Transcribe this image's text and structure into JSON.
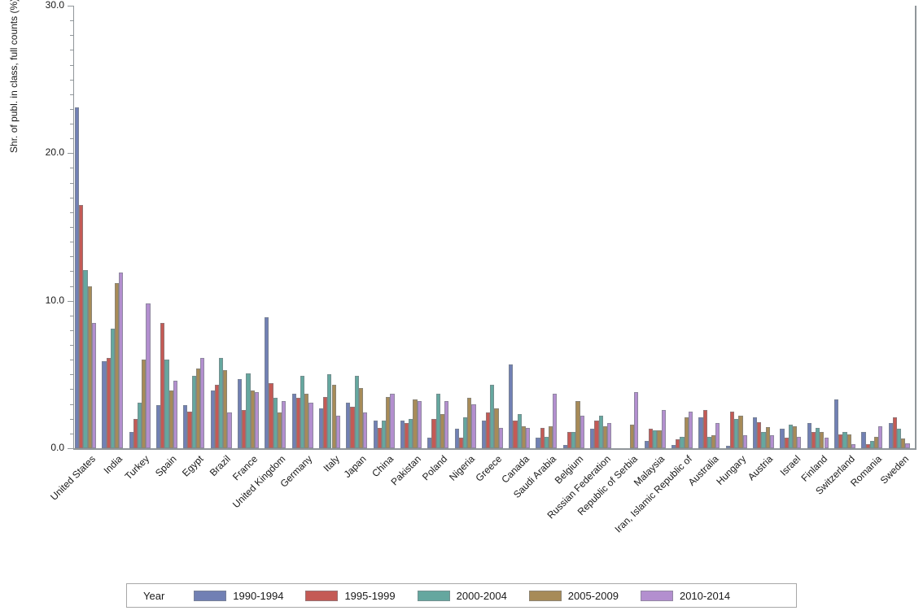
{
  "y_axis": {
    "label": "Shr. of publ. in class, full counts (%)",
    "tick_values": [
      0,
      10,
      20,
      30
    ],
    "tick_labels": [
      "0.0",
      "10.0",
      "20.0",
      "30.0"
    ],
    "minor_tick_step": 1,
    "max": 30
  },
  "legend": {
    "title": "Year",
    "position": "bottom"
  },
  "colors": {
    "axis": "#90969a",
    "series_1990_1994": "#7180b4",
    "series_1995_1999": "#c45a55",
    "series_2000_2004": "#65a79f",
    "series_2005_2009": "#a78b58",
    "series_2010_2014": "#b38fcf"
  },
  "chart_data": {
    "type": "bar",
    "title": "",
    "xlabel": "",
    "ylabel": "Shr. of publ. in class, full counts (%)",
    "ylim": [
      0,
      30
    ],
    "y_ticks": [
      0,
      10,
      20,
      30
    ],
    "grid": false,
    "legend_title": "Year",
    "legend_position": "bottom",
    "categories": [
      "United States",
      "India",
      "Turkey",
      "Spain",
      "Egypt",
      "Brazil",
      "France",
      "United Kingdom",
      "Germany",
      "Italy",
      "Japan",
      "China",
      "Pakistan",
      "Poland",
      "Nigeria",
      "Greece",
      "Canada",
      "Saudi Arabia",
      "Belgium",
      "Russian Federation",
      "Republic of Serbia",
      "Malaysia",
      "Iran, Islamic Republic of",
      "Australia",
      "Hungary",
      "Austria",
      "Israel",
      "Finland",
      "Switzerland",
      "Romania",
      "Sweden"
    ],
    "series": [
      {
        "name": "1990-1994",
        "color": "#7180b4",
        "values": [
          23.1,
          5.9,
          1.1,
          2.9,
          2.9,
          3.9,
          4.7,
          8.9,
          3.7,
          2.7,
          3.1,
          1.9,
          1.9,
          0.7,
          1.3,
          1.9,
          5.7,
          0.7,
          0.2,
          1.3,
          0,
          0.5,
          0.2,
          2.1,
          0.15,
          2.1,
          1.3,
          1.7,
          3.3,
          1.1,
          1.7
        ]
      },
      {
        "name": "1995-1999",
        "color": "#c45a55",
        "values": [
          16.5,
          6.1,
          2.0,
          8.5,
          2.5,
          4.3,
          2.6,
          4.4,
          3.4,
          3.5,
          2.8,
          1.4,
          1.7,
          2.0,
          0.7,
          2.4,
          1.9,
          1.4,
          1.1,
          1.9,
          0,
          1.3,
          0.6,
          2.6,
          2.5,
          1.75,
          0.7,
          1.1,
          0.95,
          0.3,
          2.1
        ]
      },
      {
        "name": "2000-2004",
        "color": "#65a79f",
        "values": [
          12.1,
          8.1,
          3.1,
          6.0,
          4.9,
          6.1,
          5.1,
          3.4,
          4.9,
          5.0,
          4.9,
          1.9,
          2.0,
          3.7,
          2.1,
          4.3,
          2.3,
          0.8,
          1.1,
          2.2,
          0,
          1.2,
          0.8,
          0.8,
          2.0,
          1.1,
          1.6,
          1.4,
          1.1,
          0.5,
          1.3
        ]
      },
      {
        "name": "2005-2009",
        "color": "#a78b58",
        "values": [
          11.0,
          11.2,
          6.0,
          3.9,
          5.4,
          5.3,
          3.9,
          2.4,
          3.7,
          4.3,
          4.1,
          3.5,
          3.3,
          2.3,
          3.4,
          2.7,
          1.5,
          1.5,
          3.2,
          1.5,
          1.6,
          1.2,
          2.1,
          0.9,
          2.2,
          1.45,
          1.5,
          1.1,
          0.95,
          0.8,
          0.65
        ]
      },
      {
        "name": "2010-2014",
        "color": "#b38fcf",
        "values": [
          8.5,
          11.9,
          9.8,
          4.6,
          6.1,
          2.4,
          3.8,
          3.2,
          3.1,
          2.2,
          2.4,
          3.7,
          3.2,
          3.2,
          3.0,
          1.4,
          1.4,
          3.7,
          2.2,
          1.7,
          3.8,
          2.6,
          2.5,
          1.7,
          0.9,
          0.9,
          0.8,
          0.7,
          0.3,
          1.5,
          0.35
        ]
      }
    ]
  }
}
